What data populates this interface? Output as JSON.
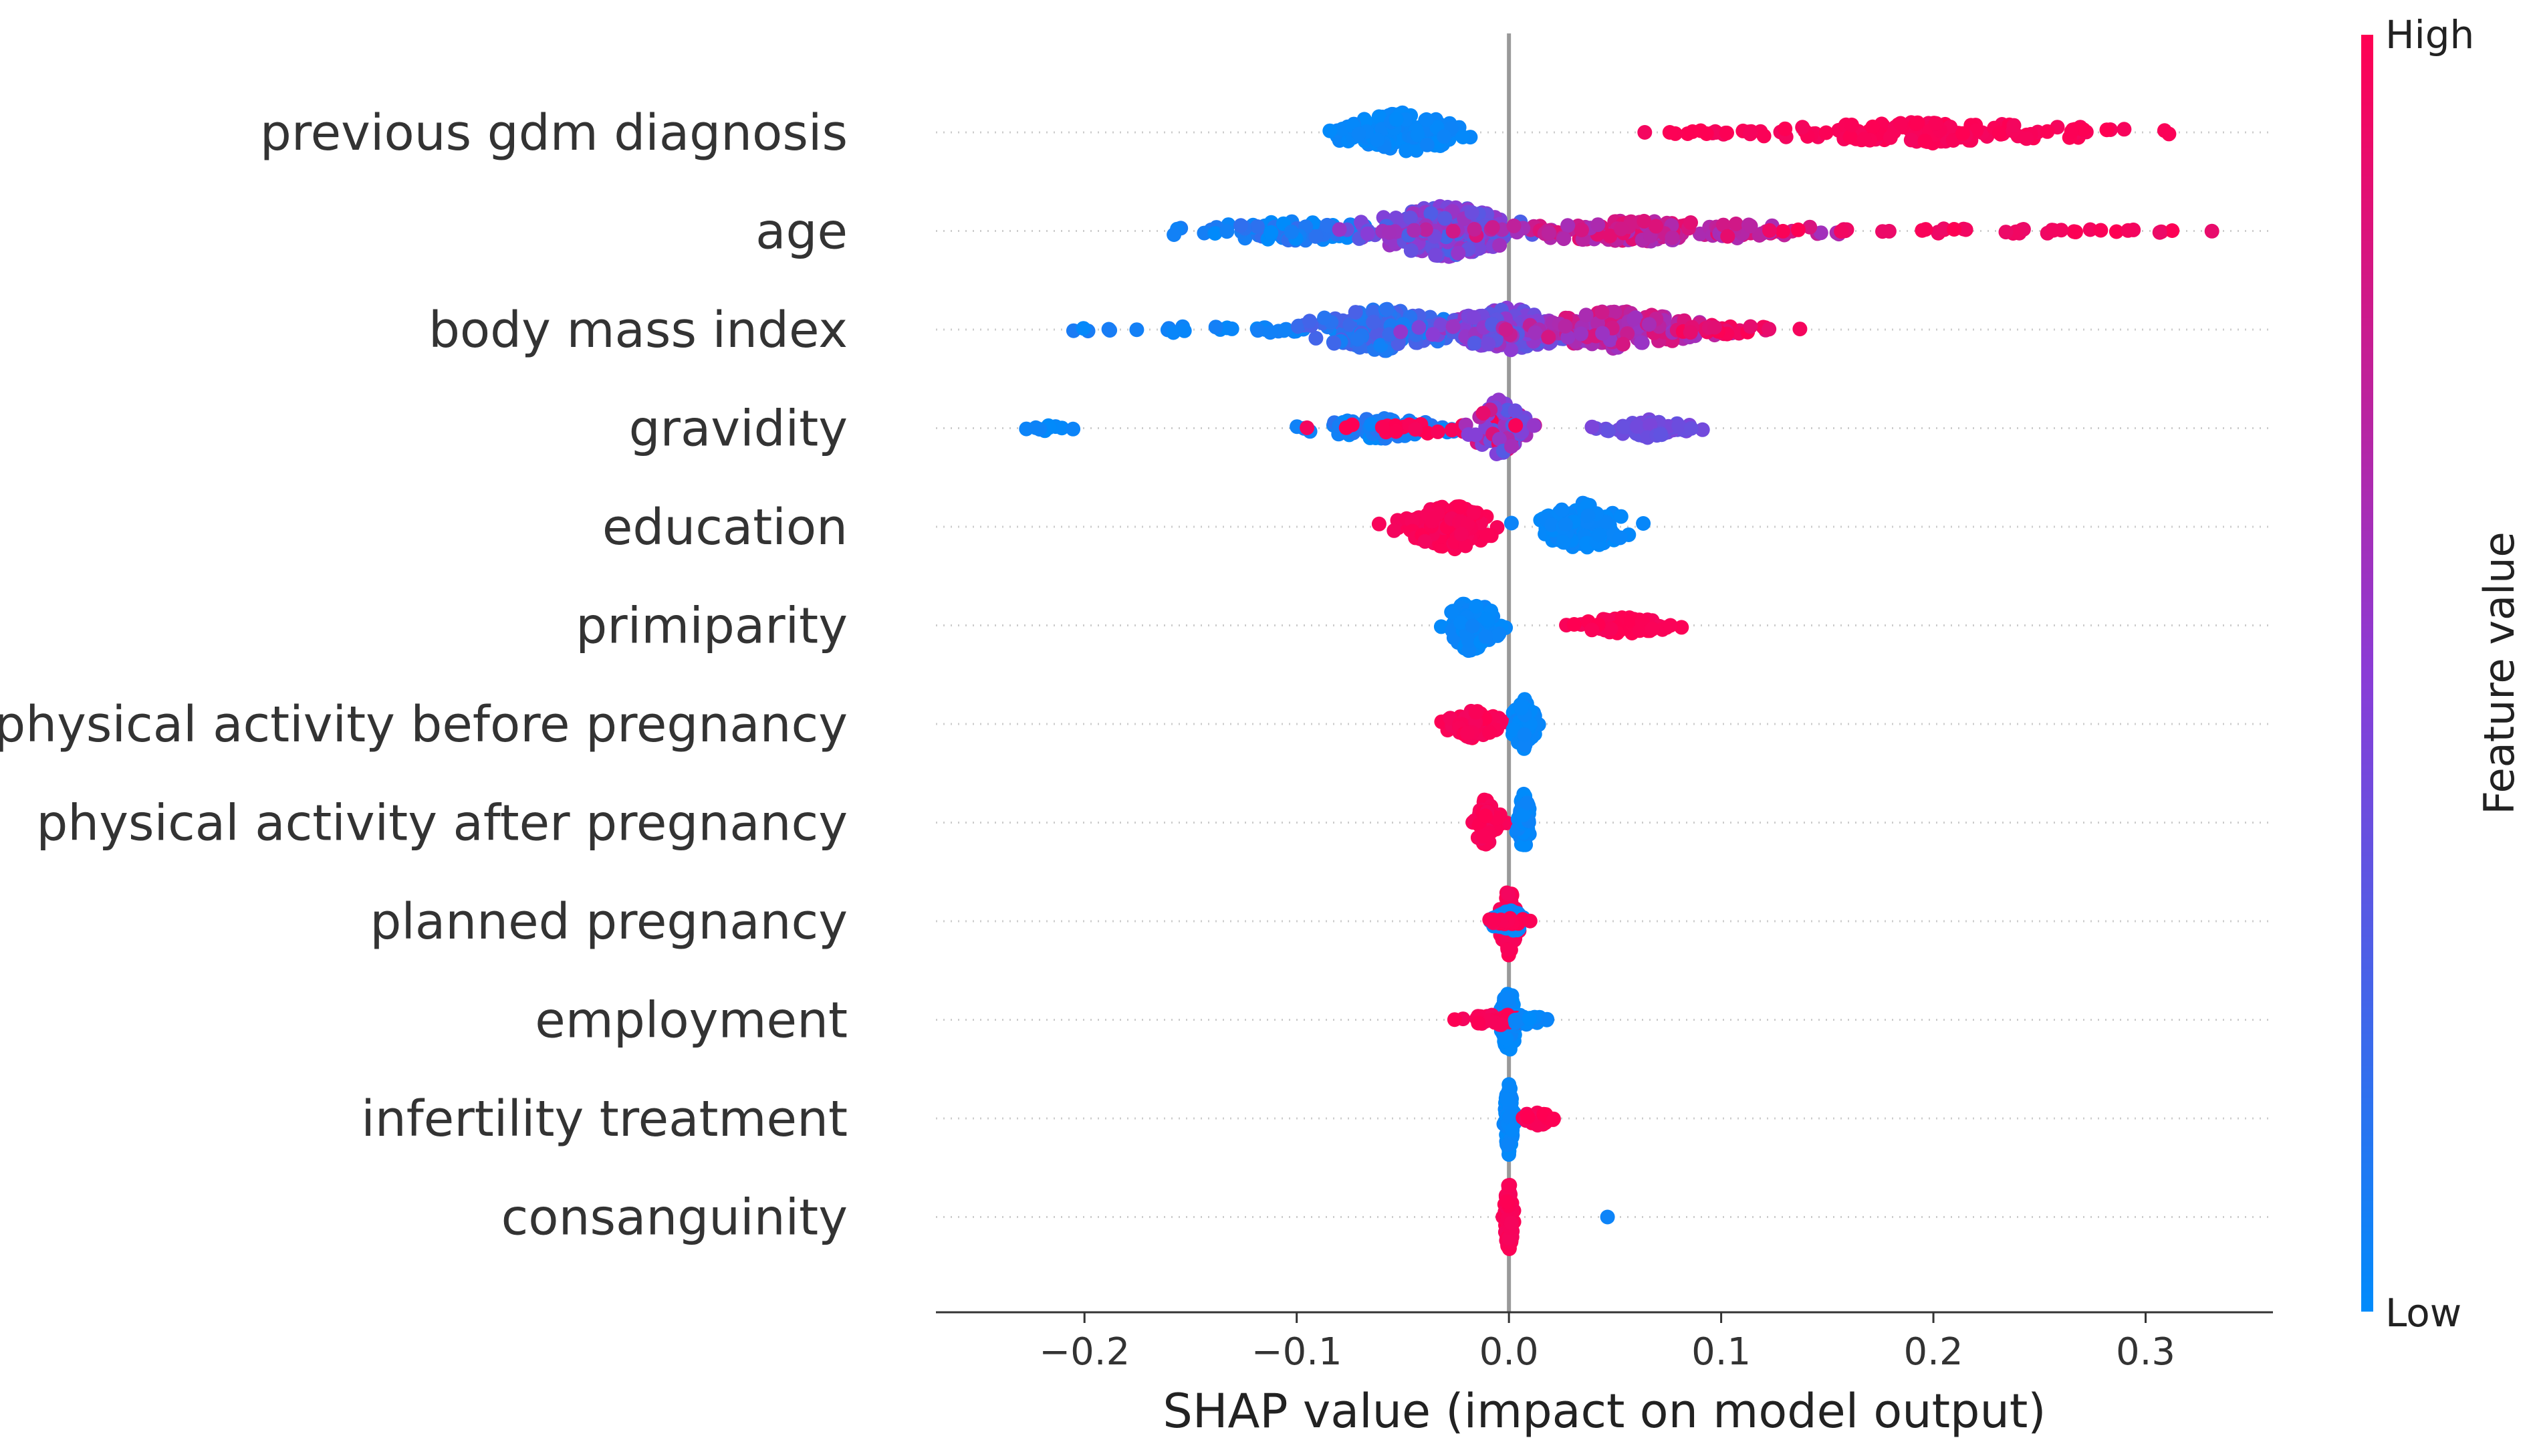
{
  "chart_data": {
    "type": "scatter",
    "subtype": "shap-beeswarm",
    "xlabel": "SHAP value (impact on model output)",
    "xlim": [
      -0.27,
      0.36
    ],
    "xticks": [
      -0.2,
      -0.1,
      0.0,
      0.1,
      0.2,
      0.3
    ],
    "xtick_labels": [
      "−0.2",
      "−0.1",
      "0.0",
      "0.1",
      "0.2",
      "0.3"
    ],
    "colorbar": {
      "title": "Feature value",
      "high_label": "High",
      "low_label": "Low",
      "low_color": "#008bfb",
      "high_color": "#ff0052"
    },
    "features": [
      {
        "name": "previous gdm diagnosis",
        "clusters": [
          {
            "center": -0.05,
            "spread": 0.03,
            "n": 140,
            "v0": 0.0,
            "v1": 0.05,
            "height": 0.42
          },
          {
            "center": 0.2,
            "spread": 0.08,
            "n": 150,
            "v0": 0.95,
            "v1": 1.0,
            "height": 0.22
          },
          {
            "center": 0.1,
            "spread": 0.03,
            "n": 14,
            "v0": 0.95,
            "v1": 1.0,
            "height": 0.05
          }
        ]
      },
      {
        "name": "age",
        "clusters": [
          {
            "center": -0.1,
            "spread": 0.055,
            "n": 90,
            "v0": 0.0,
            "v1": 0.2,
            "height": 0.2
          },
          {
            "center": -0.03,
            "spread": 0.035,
            "n": 220,
            "v0": 0.25,
            "v1": 0.6,
            "height": 0.55
          },
          {
            "center": 0.06,
            "spread": 0.08,
            "n": 160,
            "v0": 0.6,
            "v1": 0.9,
            "height": 0.22
          },
          {
            "center": 0.22,
            "spread": 0.1,
            "n": 40,
            "v0": 0.9,
            "v1": 1.0,
            "height": 0.06
          }
        ]
      },
      {
        "name": "body mass index",
        "clusters": [
          {
            "center": -0.14,
            "spread": 0.06,
            "n": 30,
            "v0": 0.0,
            "v1": 0.1,
            "height": 0.08
          },
          {
            "center": -0.06,
            "spread": 0.035,
            "n": 150,
            "v0": 0.05,
            "v1": 0.3,
            "height": 0.45
          },
          {
            "center": 0.0,
            "spread": 0.03,
            "n": 160,
            "v0": 0.3,
            "v1": 0.6,
            "height": 0.45
          },
          {
            "center": 0.05,
            "spread": 0.04,
            "n": 150,
            "v0": 0.55,
            "v1": 0.85,
            "height": 0.4
          },
          {
            "center": 0.1,
            "spread": 0.025,
            "n": 25,
            "v0": 0.85,
            "v1": 1.0,
            "height": 0.1
          }
        ]
      },
      {
        "name": "gravidity",
        "clusters": [
          {
            "center": -0.22,
            "spread": 0.02,
            "n": 10,
            "v0": 0.0,
            "v1": 0.05,
            "height": 0.06
          },
          {
            "center": -0.06,
            "spread": 0.03,
            "n": 80,
            "v0": 0.0,
            "v1": 0.15,
            "height": 0.22
          },
          {
            "center": -0.05,
            "spread": 0.03,
            "n": 20,
            "v0": 0.95,
            "v1": 1.0,
            "height": 0.18
          },
          {
            "center": -0.005,
            "spread": 0.012,
            "n": 90,
            "v0": 0.3,
            "v1": 1.0,
            "height": 0.6
          },
          {
            "center": 0.065,
            "spread": 0.02,
            "n": 60,
            "v0": 0.35,
            "v1": 0.45,
            "height": 0.2
          }
        ]
      },
      {
        "name": "education",
        "clusters": [
          {
            "center": -0.028,
            "spread": 0.02,
            "n": 130,
            "v0": 0.95,
            "v1": 1.0,
            "height": 0.5
          },
          {
            "center": 0.035,
            "spread": 0.02,
            "n": 130,
            "v0": 0.0,
            "v1": 0.05,
            "height": 0.5
          }
        ]
      },
      {
        "name": "primiparity",
        "clusters": [
          {
            "center": -0.018,
            "spread": 0.012,
            "n": 100,
            "v0": 0.0,
            "v1": 0.05,
            "height": 0.55
          },
          {
            "center": 0.055,
            "spread": 0.02,
            "n": 60,
            "v0": 0.95,
            "v1": 1.0,
            "height": 0.18
          }
        ]
      },
      {
        "name": "physical activity before pregnancy",
        "clusters": [
          {
            "center": -0.017,
            "spread": 0.012,
            "n": 90,
            "v0": 0.95,
            "v1": 1.0,
            "height": 0.3
          },
          {
            "center": 0.007,
            "spread": 0.005,
            "n": 70,
            "v0": 0.0,
            "v1": 0.05,
            "height": 0.55
          }
        ]
      },
      {
        "name": "physical activity after pregnancy",
        "clusters": [
          {
            "center": -0.011,
            "spread": 0.006,
            "n": 60,
            "v0": 0.95,
            "v1": 1.0,
            "height": 0.5
          },
          {
            "center": 0.007,
            "spread": 0.003,
            "n": 80,
            "v0": 0.0,
            "v1": 0.05,
            "height": 0.6
          }
        ]
      },
      {
        "name": "planned pregnancy",
        "clusters": [
          {
            "center": 0.0,
            "spread": 0.004,
            "n": 90,
            "v0": 0.95,
            "v1": 1.0,
            "height": 0.7
          },
          {
            "center": 0.0,
            "spread": 0.008,
            "n": 40,
            "v0": 0.0,
            "v1": 0.05,
            "height": 0.25
          },
          {
            "center": 0.0,
            "spread": 0.012,
            "n": 14,
            "v0": 0.95,
            "v1": 1.0,
            "height": 0.06
          }
        ]
      },
      {
        "name": "employment",
        "clusters": [
          {
            "center": 0.0,
            "spread": 0.004,
            "n": 80,
            "v0": 0.0,
            "v1": 0.05,
            "height": 0.7
          },
          {
            "center": -0.005,
            "spread": 0.014,
            "n": 40,
            "v0": 0.95,
            "v1": 1.0,
            "height": 0.12
          },
          {
            "center": 0.008,
            "spread": 0.008,
            "n": 20,
            "v0": 0.0,
            "v1": 0.05,
            "height": 0.1
          }
        ]
      },
      {
        "name": "infertility treatment",
        "clusters": [
          {
            "center": 0.0,
            "spread": 0.002,
            "n": 90,
            "v0": 0.0,
            "v1": 0.05,
            "height": 0.75
          },
          {
            "center": 0.014,
            "spread": 0.008,
            "n": 25,
            "v0": 0.95,
            "v1": 1.0,
            "height": 0.15
          }
        ]
      },
      {
        "name": "consanguinity",
        "clusters": [
          {
            "center": 0.0,
            "spread": 0.002,
            "n": 80,
            "v0": 0.95,
            "v1": 1.0,
            "height": 0.75
          },
          {
            "center": 0.046,
            "spread": 0.001,
            "n": 1,
            "v0": 0.0,
            "v1": 0.05,
            "height": 0.0
          }
        ]
      }
    ]
  }
}
